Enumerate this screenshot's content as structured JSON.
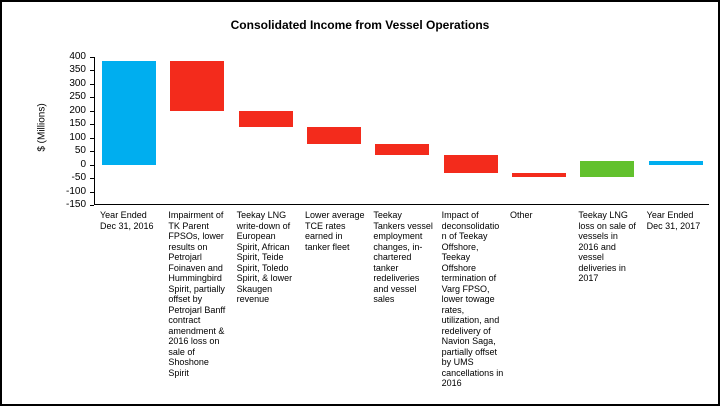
{
  "chart_data": {
    "type": "bar",
    "subtype": "waterfall",
    "title": "Consolidated Income from Vessel Operations",
    "xlabel": "",
    "ylabel": "$ (Millions)",
    "ylim": [
      -150,
      400
    ],
    "y_ticks": [
      400,
      350,
      300,
      250,
      200,
      150,
      100,
      50,
      0,
      -50,
      -100,
      -150
    ],
    "grid": false,
    "legend": "none",
    "colors": {
      "blue": "#00aeef",
      "red": "#f32b1c",
      "green": "#62c12e"
    },
    "bars": [
      {
        "label": "Year Ended Dec 31, 2016",
        "from": 0,
        "to": 385,
        "value": 385,
        "color": "blue",
        "kind": "total"
      },
      {
        "label": "Impairment of TK Parent FPSOs, lower results on Petrojarl Foinaven and Hummingbird Spirit, partially offset by Petrojarl Banff contract amendment & 2016 loss on sale of Shoshone Spirit",
        "from": 385,
        "to": 200,
        "value": -185,
        "color": "red",
        "kind": "decrease"
      },
      {
        "label": "Teekay LNG write-down of European Spirit, African Spirit, Teide Spirit, Toledo Spirit, & lower Skaugen revenue",
        "from": 200,
        "to": 140,
        "value": -60,
        "color": "red",
        "kind": "decrease"
      },
      {
        "label": "Lower average TCE rates earned in tanker fleet",
        "from": 140,
        "to": 75,
        "value": -65,
        "color": "red",
        "kind": "decrease"
      },
      {
        "label": "Teekay Tankers vessel employment changes, in-chartered tanker redeliveries and vessel sales",
        "from": 75,
        "to": 35,
        "value": -40,
        "color": "red",
        "kind": "decrease"
      },
      {
        "label": "Impact of deconsolidation of Teekay Offshore, Teekay Offshore termination of Varg FPSO, lower towage rates, utilization, and redelivery of Navion Saga, partially offset by UMS cancellations in 2016",
        "from": 35,
        "to": -30,
        "value": -65,
        "color": "red",
        "kind": "decrease"
      },
      {
        "label": "Other",
        "from": -30,
        "to": -45,
        "value": -15,
        "color": "red",
        "kind": "decrease"
      },
      {
        "label": "Teekay LNG loss on sale of vessels in 2016 and vessel deliveries in 2017",
        "from": -45,
        "to": 15,
        "value": 60,
        "color": "green",
        "kind": "increase"
      },
      {
        "label": "Year Ended Dec 31, 2017",
        "from": 0,
        "to": 15,
        "value": 15,
        "color": "blue",
        "kind": "total"
      }
    ]
  }
}
